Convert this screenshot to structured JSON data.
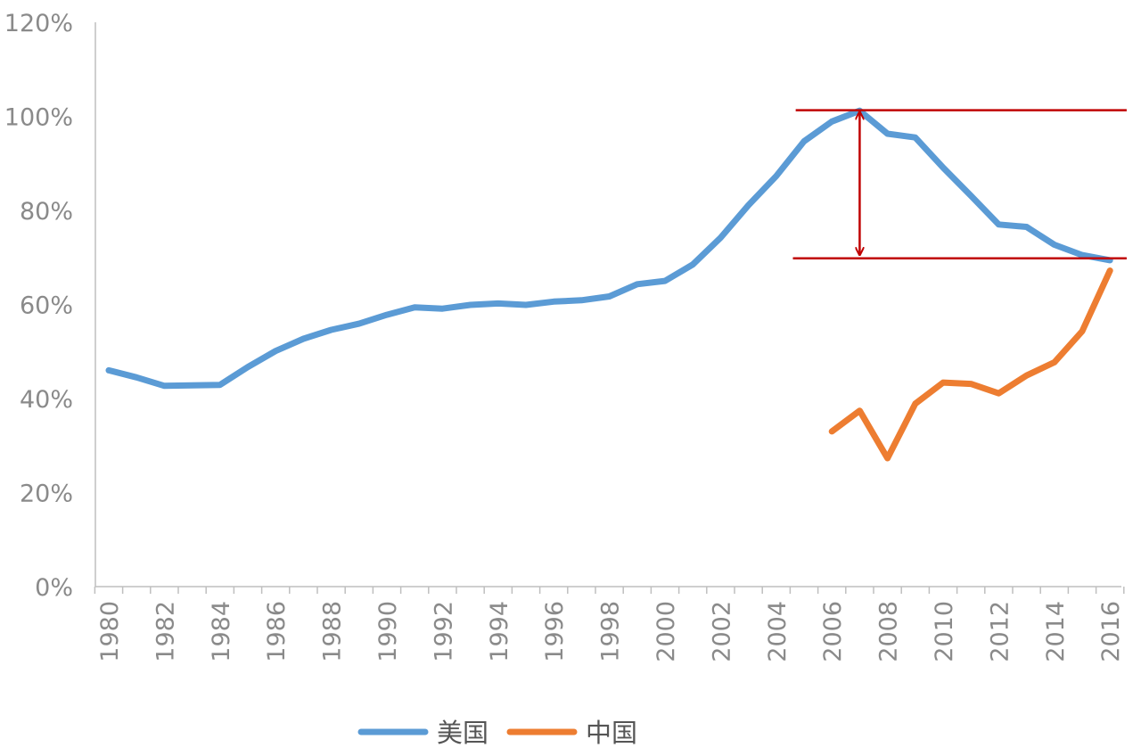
{
  "chart_data": {
    "type": "line",
    "title": "",
    "xlabel": "",
    "ylabel": "",
    "xlim": [
      1980,
      2016
    ],
    "ylim": [
      0,
      120
    ],
    "y_ticks": [
      0,
      20,
      40,
      60,
      80,
      100,
      120
    ],
    "y_tick_labels": [
      "0%",
      "20%",
      "40%",
      "60%",
      "80%",
      "100%",
      "120%"
    ],
    "x_tick_labels": [
      "1980",
      "1982",
      "1984",
      "1986",
      "1988",
      "1990",
      "1992",
      "1994",
      "1996",
      "1998",
      "2000",
      "2002",
      "2004",
      "2006",
      "2008",
      "2010",
      "2012",
      "2014",
      "2016"
    ],
    "grid": false,
    "legend_position": "bottom",
    "series": [
      {
        "name": "美国",
        "color": "#5b9bd5",
        "x": [
          1980,
          1981,
          1982,
          1983,
          1984,
          1985,
          1986,
          1987,
          1988,
          1989,
          1990,
          1991,
          1992,
          1993,
          1994,
          1995,
          1996,
          1997,
          1998,
          1999,
          2000,
          2001,
          2002,
          2003,
          2004,
          2005,
          2006,
          2007,
          2008,
          2009,
          2010,
          2011,
          2012,
          2013,
          2014,
          2015,
          2016
        ],
        "values": [
          46,
          44.5,
          42.7,
          42.8,
          42.9,
          46.7,
          50.1,
          52.7,
          54.6,
          55.9,
          57.8,
          59.4,
          59.1,
          59.9,
          60.2,
          59.9,
          60.6,
          60.9,
          61.7,
          64.3,
          65.0,
          68.5,
          74.2,
          81.1,
          87.3,
          94.7,
          98.9,
          101.2,
          96.3,
          95.5,
          89.1,
          83.1,
          77.0,
          76.5,
          72.7,
          70.5,
          69.4
        ]
      },
      {
        "name": "中国",
        "color": "#ed7d31",
        "x": [
          2006,
          2007,
          2008,
          2009,
          2010,
          2011,
          2012,
          2013,
          2014,
          2015,
          2016
        ],
        "values": [
          33,
          37.4,
          27.3,
          38.9,
          43.4,
          43.1,
          41.1,
          44.9,
          47.7,
          54.3,
          67.2
        ]
      }
    ],
    "annotations": {
      "color": "#c00000",
      "upper_line_value": 101.3,
      "lower_line_value": 69.8,
      "upper_line_x_range": [
        2004.7,
        2016.6
      ],
      "lower_line_x_range": [
        2004.6,
        2016.6
      ],
      "arrow_x": 2007
    }
  }
}
